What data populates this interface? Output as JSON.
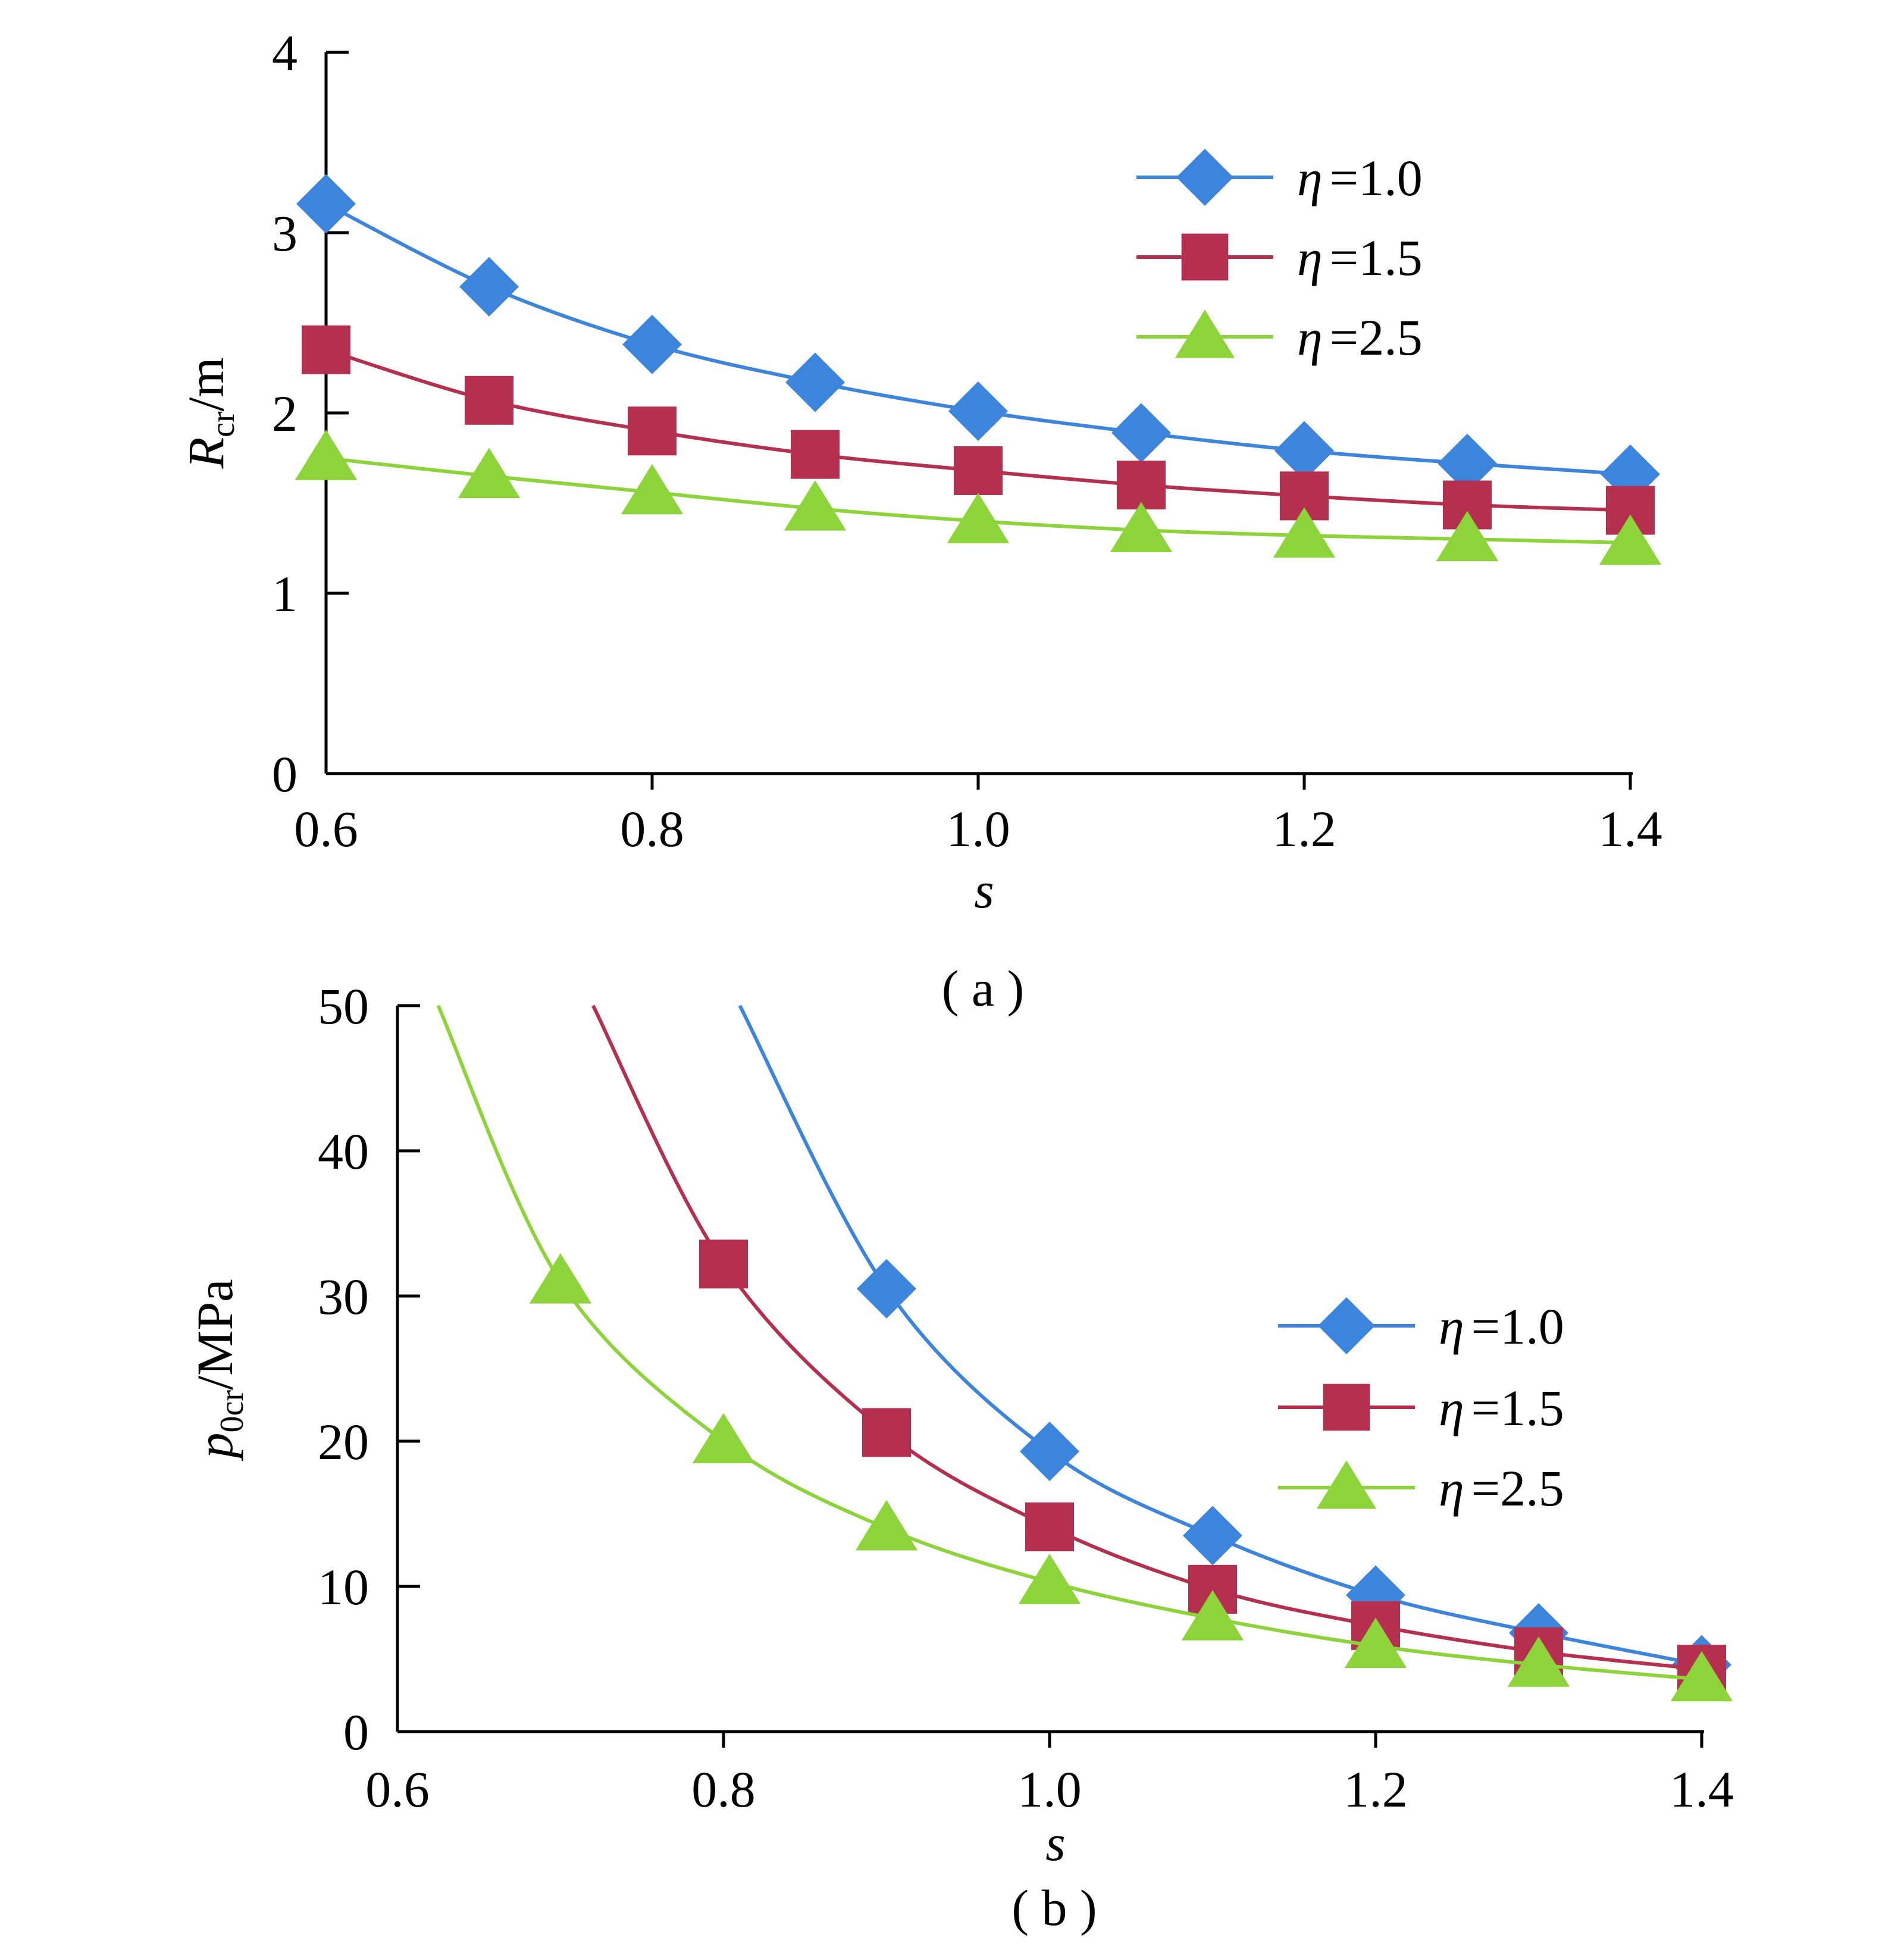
{
  "chart_data": [
    {
      "type": "line",
      "panel_label": "( a )",
      "xlabel": "s",
      "ylabel_main": "R",
      "ylabel_sub": "cr",
      "ylabel_unit": "/m",
      "xlim": [
        0.6,
        1.4
      ],
      "ylim": [
        0,
        4
      ],
      "xticks": [
        "0.6",
        "0.8",
        "1.0",
        "1.2",
        "1.4"
      ],
      "yticks": [
        "0",
        "1",
        "2",
        "3",
        "4"
      ],
      "legend_position": "top-right",
      "x": [
        0.6,
        0.7,
        0.8,
        0.9,
        1.0,
        1.1,
        1.2,
        1.3,
        1.4
      ],
      "series": [
        {
          "name": "1.0",
          "marker": "diamond",
          "color": "#3D85DC",
          "values": [
            3.16,
            2.7,
            2.38,
            2.17,
            2.01,
            1.89,
            1.79,
            1.72,
            1.66
          ]
        },
        {
          "name": "1.5",
          "marker": "square",
          "color": "#B5304F",
          "values": [
            2.35,
            2.07,
            1.9,
            1.77,
            1.68,
            1.6,
            1.54,
            1.49,
            1.46
          ]
        },
        {
          "name": "2.5",
          "marker": "triangle",
          "color": "#8DD33A",
          "values": [
            1.75,
            1.65,
            1.56,
            1.47,
            1.4,
            1.35,
            1.32,
            1.3,
            1.28
          ]
        }
      ]
    },
    {
      "type": "line",
      "panel_label": "( b )",
      "xlabel": "s",
      "ylabel_main": "p",
      "ylabel_sub": "0cr",
      "ylabel_unit": "/MPa",
      "xlim": [
        0.6,
        1.4
      ],
      "ylim": [
        0,
        50
      ],
      "xticks": [
        "0.6",
        "0.8",
        "1.0",
        "1.2",
        "1.4"
      ],
      "yticks": [
        "0",
        "10",
        "20",
        "30",
        "40",
        "50"
      ],
      "legend_position": "right",
      "series": [
        {
          "name": "1.0",
          "marker": "diamond",
          "color": "#3D85DC",
          "x": [
            0.9,
            1.0,
            1.1,
            1.2,
            1.3,
            1.4
          ],
          "values": [
            30.5,
            19.3,
            13.5,
            9.4,
            6.8,
            4.6
          ],
          "curve_start": [
            0.81,
            50
          ]
        },
        {
          "name": "1.5",
          "marker": "square",
          "color": "#B5304F",
          "x": [
            0.8,
            0.9,
            1.0,
            1.1,
            1.2,
            1.3,
            1.4
          ],
          "values": [
            32.2,
            20.6,
            14.1,
            9.8,
            7.3,
            5.5,
            4.3
          ],
          "curve_start": [
            0.72,
            50
          ]
        },
        {
          "name": "2.5",
          "marker": "triangle",
          "color": "#8DD33A",
          "x": [
            0.7,
            0.8,
            0.9,
            1.0,
            1.1,
            1.2,
            1.3,
            1.4
          ],
          "values": [
            31.0,
            20.0,
            14.0,
            10.3,
            7.8,
            5.9,
            4.6,
            3.6
          ],
          "curve_start": [
            0.625,
            50
          ]
        }
      ]
    }
  ],
  "legend_symbol": "η",
  "legend_eq": "=",
  "colors": {
    "blue": "#3D85DC",
    "red": "#B5304F",
    "green": "#8DD33A"
  }
}
